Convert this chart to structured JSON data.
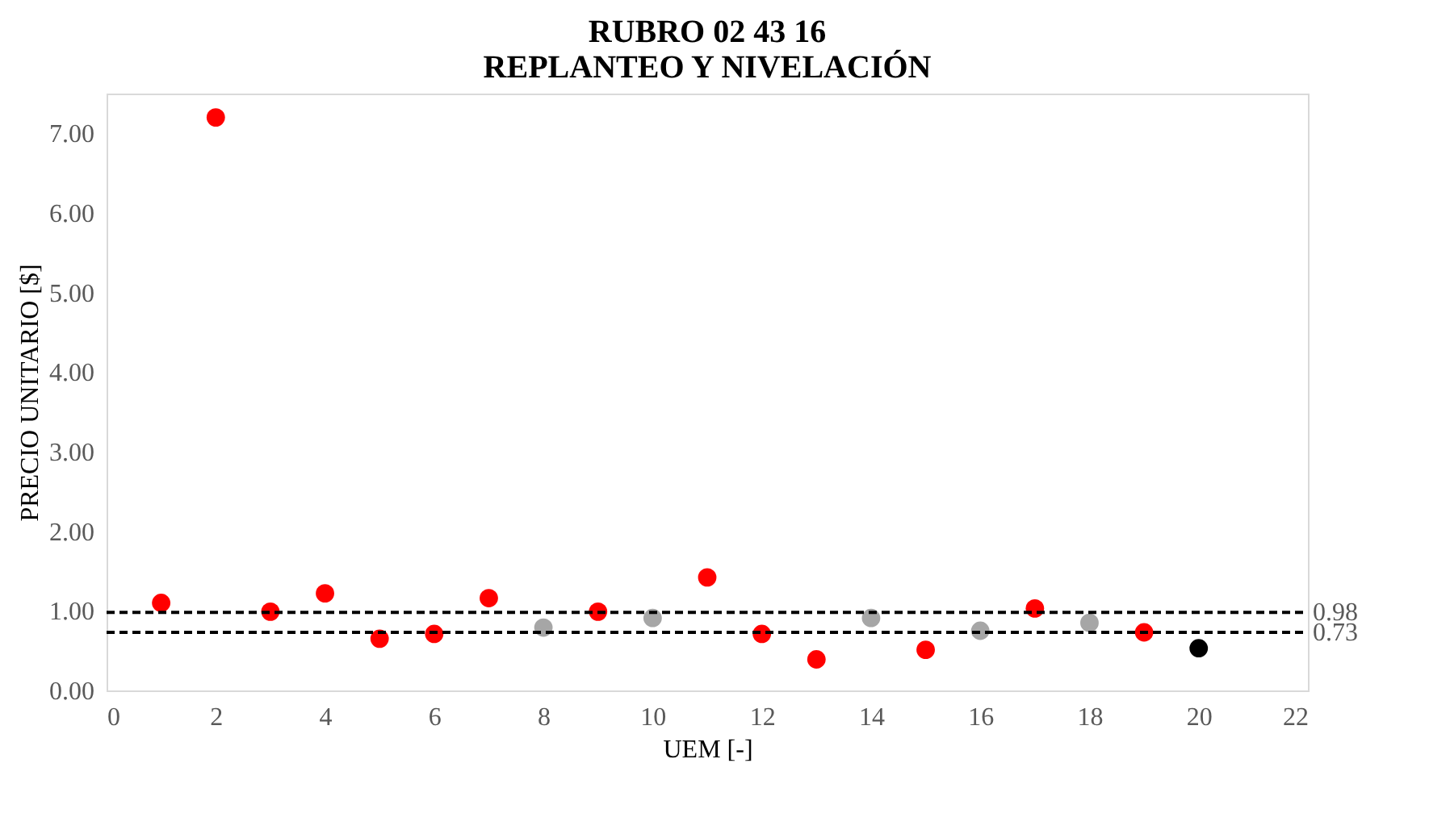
{
  "chart_data": {
    "type": "scatter",
    "title": "RUBRO 02 43 16\nREPLANTEO Y NIVELACIÓN",
    "xlabel": "UEM [-]",
    "ylabel": "PRECIO UNITARIO [$]",
    "series": [
      {
        "color": "#ff0000",
        "x": [
          1,
          2,
          3,
          4,
          5,
          6,
          7,
          9,
          11,
          12,
          13,
          15,
          17,
          19
        ],
        "values": [
          1.1,
          7.2,
          0.99,
          1.22,
          0.65,
          0.71,
          1.16,
          0.99,
          1.42,
          0.71,
          0.39,
          0.51,
          1.03,
          0.73
        ]
      },
      {
        "color": "#a6a6a6",
        "x": [
          8,
          10,
          14,
          16,
          18
        ],
        "values": [
          0.79,
          0.91,
          0.91,
          0.75,
          0.85
        ]
      },
      {
        "color": "#000000",
        "x": [
          20
        ],
        "values": [
          0.53
        ]
      }
    ],
    "xlim": [
      0,
      22
    ],
    "xticks": [
      0,
      2,
      4,
      6,
      8,
      10,
      12,
      14,
      16,
      18,
      20,
      22
    ],
    "ylim": [
      0,
      7.5
    ],
    "yticks": [
      {
        "value": 0,
        "label": "0.00"
      },
      {
        "value": 1,
        "label": "1.00"
      },
      {
        "value": 2,
        "label": "2.00"
      },
      {
        "value": 3,
        "label": "3.00"
      },
      {
        "value": 4,
        "label": "4.00"
      },
      {
        "value": 5,
        "label": "5.00"
      },
      {
        "value": 6,
        "label": "6.00"
      },
      {
        "value": 7,
        "label": "7.00"
      }
    ],
    "ref_lines": [
      {
        "axis": "y",
        "value": 0.98,
        "label": "0.98",
        "color": "#000000",
        "line_style": "dashed"
      },
      {
        "axis": "y",
        "value": 0.73,
        "label": "0.73",
        "color": "#000000",
        "line_style": "dashed"
      }
    ],
    "marker": "circle",
    "grid": false,
    "legend": false
  }
}
